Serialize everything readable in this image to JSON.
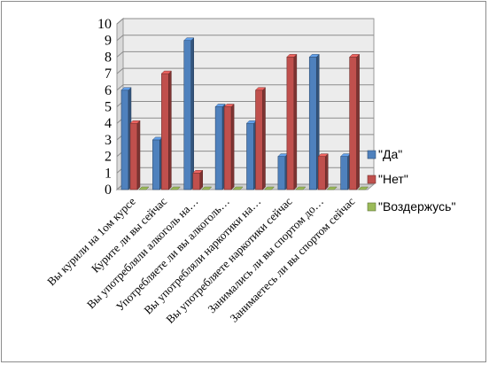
{
  "chart_data": {
    "type": "bar",
    "style": "3d-clustered-column",
    "title": "",
    "xlabel": "",
    "ylabel": "",
    "ylim": [
      0,
      10
    ],
    "ytick_step": 1,
    "grid": true,
    "legend_position": "right",
    "categories": [
      "Вы курили на 1ом курсе",
      "Курите ли вы сейчас",
      "Вы употребляли алкоголь на…",
      "Употребляете ли вы алкоголь…",
      "Вы употребляли наркотики на…",
      "Вы употребляете наркотики сейчас",
      "Занимались ли вы спортом до…",
      "Занимаетесь ли вы спортом сейчас"
    ],
    "series": [
      {
        "name": "\"Да\"",
        "color": "#4f81bd",
        "values": [
          6,
          3,
          9,
          5,
          4,
          2,
          8,
          2
        ]
      },
      {
        "name": "\"Нет\"",
        "color": "#c0504d",
        "values": [
          4,
          7,
          1,
          5,
          6,
          8,
          2,
          8
        ]
      },
      {
        "name": "\"Воздержусь\"",
        "color": "#9bbb59",
        "values": [
          0,
          0,
          0,
          0,
          0,
          0,
          0,
          0
        ]
      }
    ]
  }
}
